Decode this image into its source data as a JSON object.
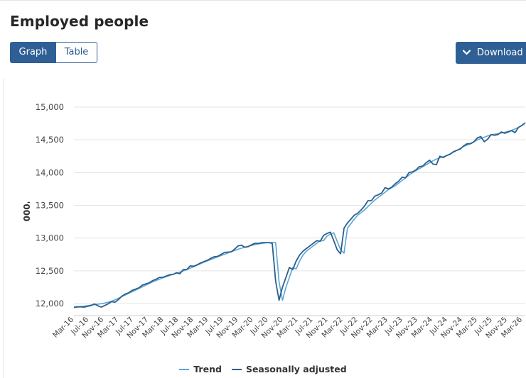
{
  "title": "Employed people",
  "view_toggle": {
    "graph_label": "Graph",
    "table_label": "Table",
    "selected": "Graph"
  },
  "download_label": "Download",
  "icons": {
    "download": "chevron-down-icon"
  },
  "colors": {
    "accent": "#2e5f95",
    "trend": "#5aa6d6",
    "seasonal": "#2d5f8c"
  },
  "chart_data": {
    "type": "line",
    "ylabel": "'000",
    "xlabel": "",
    "ylim": [
      11850,
      15100
    ],
    "yticks": [
      12000,
      12500,
      13000,
      13500,
      14000,
      14500,
      15000
    ],
    "ytick_labels": [
      "12,000",
      "12,500",
      "13,000",
      "13,500",
      "14,000",
      "14,500",
      "15,000"
    ],
    "x_start": "Mar-16",
    "x_end": "Mar-26",
    "xtick_labels": [
      "Mar-16",
      "Jul-16",
      "Nov-16",
      "Mar-17",
      "Jul-17",
      "Nov-17",
      "Mar-18",
      "Jul-18",
      "Nov-18",
      "Mar-19",
      "Jul-19",
      "Nov-19",
      "Mar-20",
      "Jul-20",
      "Nov-20",
      "Mar-21",
      "Jul-21",
      "Nov-21",
      "Mar-22",
      "Jul-22",
      "Nov-22",
      "Mar-23",
      "Jul-23",
      "Nov-23",
      "Mar-24",
      "Jul-24",
      "Nov-24",
      "Mar-25",
      "Jul-25",
      "Nov-25",
      "Mar-26"
    ],
    "grid": true,
    "legend_position": "bottom",
    "series": [
      {
        "name": "Trend",
        "key": "trend",
        "values": [
          11950,
          11952,
          11955,
          11960,
          11968,
          11976,
          11983,
          11990,
          11998,
          12008,
          12020,
          12035,
          12055,
          12080,
          12105,
          12130,
          12155,
          12180,
          12205,
          12230,
          12255,
          12280,
          12305,
          12330,
          12352,
          12372,
          12392,
          12410,
          12428,
          12445,
          12462,
          12480,
          12498,
          12518,
          12540,
          12562,
          12585,
          12608,
          12630,
          12652,
          12672,
          12692,
          12712,
          12732,
          12752,
          12772,
          12792,
          12810,
          12828,
          12845,
          12860,
          12875,
          12888,
          12900,
          12910,
          12918,
          12925,
          12930,
          12932,
          12930,
          12330,
          12050,
          12250,
          12400,
          12550,
          12530,
          12650,
          12740,
          12800,
          12840,
          12880,
          12920,
          12960,
          12960,
          13030,
          13060,
          13080,
          12950,
          12820,
          12770,
          13150,
          13220,
          13290,
          13350,
          13390,
          13430,
          13480,
          13530,
          13580,
          13620,
          13660,
          13700,
          13740,
          13770,
          13800,
          13840,
          13880,
          13920,
          13960,
          14000,
          14030,
          14060,
          14090,
          14120,
          14150,
          14180,
          14205,
          14225,
          14240,
          14260,
          14285,
          14310,
          14340,
          14370,
          14400,
          14420,
          14445,
          14470,
          14500,
          14520,
          14540,
          14560,
          14575,
          14585,
          14595,
          14605,
          14615,
          14630,
          14645,
          14665,
          14690,
          14720,
          14760
        ]
      },
      {
        "name": "Seasonally adjusted",
        "key": "seasonal",
        "values": [
          11940,
          11948,
          11950,
          11945,
          11958,
          11970,
          11995,
          11965,
          11945,
          11970,
          11995,
          12030,
          12020,
          12060,
          12110,
          12145,
          12165,
          12200,
          12220,
          12240,
          12280,
          12300,
          12315,
          12350,
          12370,
          12400,
          12400,
          12420,
          12440,
          12445,
          12470,
          12455,
          12520,
          12520,
          12575,
          12570,
          12590,
          12620,
          12640,
          12660,
          12690,
          12715,
          12720,
          12750,
          12780,
          12785,
          12790,
          12830,
          12880,
          12890,
          12860,
          12870,
          12900,
          12920,
          12920,
          12930,
          12930,
          12930,
          12920,
          12340,
          12050,
          12250,
          12400,
          12550,
          12520,
          12650,
          12740,
          12800,
          12840,
          12880,
          12920,
          12960,
          12950,
          13040,
          13070,
          13090,
          12960,
          12820,
          12760,
          13150,
          13230,
          13290,
          13350,
          13380,
          13430,
          13490,
          13570,
          13570,
          13640,
          13660,
          13690,
          13770,
          13750,
          13780,
          13830,
          13870,
          13930,
          13920,
          14000,
          14010,
          14040,
          14090,
          14100,
          14150,
          14190,
          14130,
          14120,
          14250,
          14230,
          14260,
          14280,
          14320,
          14340,
          14360,
          14410,
          14440,
          14440,
          14470,
          14530,
          14550,
          14470,
          14510,
          14580,
          14570,
          14580,
          14620,
          14600,
          14620,
          14640,
          14610,
          14690,
          14720,
          14760
        ]
      }
    ]
  }
}
